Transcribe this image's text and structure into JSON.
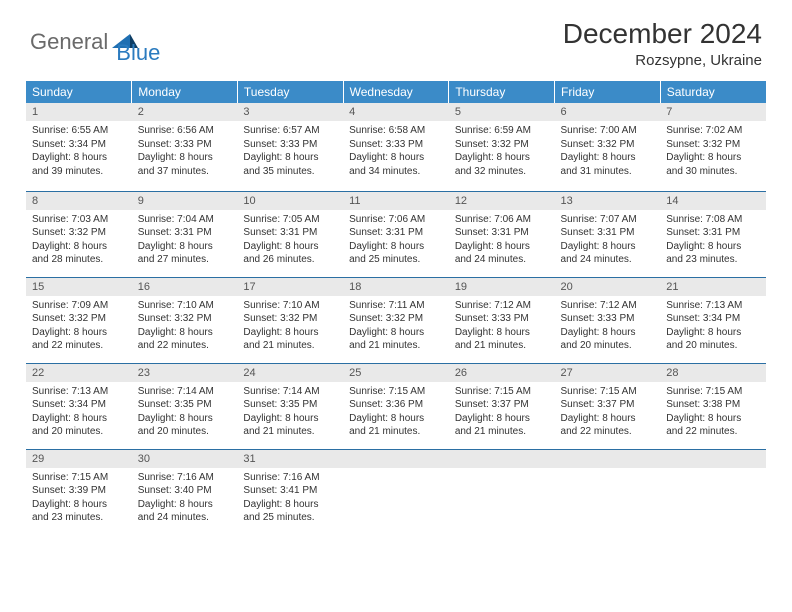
{
  "brand": {
    "general": "General",
    "blue": "Blue"
  },
  "title": "December 2024",
  "location": "Rozsypne, Ukraine",
  "colors": {
    "header_bg": "#3b8bc8",
    "header_text": "#ffffff",
    "daynum_bg": "#e9e9e9",
    "row_border": "#2b6fa3",
    "brand_gray": "#6a6a6a",
    "brand_blue": "#2b7bbf"
  },
  "weekdays": [
    "Sunday",
    "Monday",
    "Tuesday",
    "Wednesday",
    "Thursday",
    "Friday",
    "Saturday"
  ],
  "weeks": [
    [
      {
        "n": "1",
        "sr": "6:55 AM",
        "ss": "3:34 PM",
        "dl": "8 hours and 39 minutes."
      },
      {
        "n": "2",
        "sr": "6:56 AM",
        "ss": "3:33 PM",
        "dl": "8 hours and 37 minutes."
      },
      {
        "n": "3",
        "sr": "6:57 AM",
        "ss": "3:33 PM",
        "dl": "8 hours and 35 minutes."
      },
      {
        "n": "4",
        "sr": "6:58 AM",
        "ss": "3:33 PM",
        "dl": "8 hours and 34 minutes."
      },
      {
        "n": "5",
        "sr": "6:59 AM",
        "ss": "3:32 PM",
        "dl": "8 hours and 32 minutes."
      },
      {
        "n": "6",
        "sr": "7:00 AM",
        "ss": "3:32 PM",
        "dl": "8 hours and 31 minutes."
      },
      {
        "n": "7",
        "sr": "7:02 AM",
        "ss": "3:32 PM",
        "dl": "8 hours and 30 minutes."
      }
    ],
    [
      {
        "n": "8",
        "sr": "7:03 AM",
        "ss": "3:32 PM",
        "dl": "8 hours and 28 minutes."
      },
      {
        "n": "9",
        "sr": "7:04 AM",
        "ss": "3:31 PM",
        "dl": "8 hours and 27 minutes."
      },
      {
        "n": "10",
        "sr": "7:05 AM",
        "ss": "3:31 PM",
        "dl": "8 hours and 26 minutes."
      },
      {
        "n": "11",
        "sr": "7:06 AM",
        "ss": "3:31 PM",
        "dl": "8 hours and 25 minutes."
      },
      {
        "n": "12",
        "sr": "7:06 AM",
        "ss": "3:31 PM",
        "dl": "8 hours and 24 minutes."
      },
      {
        "n": "13",
        "sr": "7:07 AM",
        "ss": "3:31 PM",
        "dl": "8 hours and 24 minutes."
      },
      {
        "n": "14",
        "sr": "7:08 AM",
        "ss": "3:31 PM",
        "dl": "8 hours and 23 minutes."
      }
    ],
    [
      {
        "n": "15",
        "sr": "7:09 AM",
        "ss": "3:32 PM",
        "dl": "8 hours and 22 minutes."
      },
      {
        "n": "16",
        "sr": "7:10 AM",
        "ss": "3:32 PM",
        "dl": "8 hours and 22 minutes."
      },
      {
        "n": "17",
        "sr": "7:10 AM",
        "ss": "3:32 PM",
        "dl": "8 hours and 21 minutes."
      },
      {
        "n": "18",
        "sr": "7:11 AM",
        "ss": "3:32 PM",
        "dl": "8 hours and 21 minutes."
      },
      {
        "n": "19",
        "sr": "7:12 AM",
        "ss": "3:33 PM",
        "dl": "8 hours and 21 minutes."
      },
      {
        "n": "20",
        "sr": "7:12 AM",
        "ss": "3:33 PM",
        "dl": "8 hours and 20 minutes."
      },
      {
        "n": "21",
        "sr": "7:13 AM",
        "ss": "3:34 PM",
        "dl": "8 hours and 20 minutes."
      }
    ],
    [
      {
        "n": "22",
        "sr": "7:13 AM",
        "ss": "3:34 PM",
        "dl": "8 hours and 20 minutes."
      },
      {
        "n": "23",
        "sr": "7:14 AM",
        "ss": "3:35 PM",
        "dl": "8 hours and 20 minutes."
      },
      {
        "n": "24",
        "sr": "7:14 AM",
        "ss": "3:35 PM",
        "dl": "8 hours and 21 minutes."
      },
      {
        "n": "25",
        "sr": "7:15 AM",
        "ss": "3:36 PM",
        "dl": "8 hours and 21 minutes."
      },
      {
        "n": "26",
        "sr": "7:15 AM",
        "ss": "3:37 PM",
        "dl": "8 hours and 21 minutes."
      },
      {
        "n": "27",
        "sr": "7:15 AM",
        "ss": "3:37 PM",
        "dl": "8 hours and 22 minutes."
      },
      {
        "n": "28",
        "sr": "7:15 AM",
        "ss": "3:38 PM",
        "dl": "8 hours and 22 minutes."
      }
    ],
    [
      {
        "n": "29",
        "sr": "7:15 AM",
        "ss": "3:39 PM",
        "dl": "8 hours and 23 minutes."
      },
      {
        "n": "30",
        "sr": "7:16 AM",
        "ss": "3:40 PM",
        "dl": "8 hours and 24 minutes."
      },
      {
        "n": "31",
        "sr": "7:16 AM",
        "ss": "3:41 PM",
        "dl": "8 hours and 25 minutes."
      },
      {
        "n": "",
        "empty": true
      },
      {
        "n": "",
        "empty": true
      },
      {
        "n": "",
        "empty": true
      },
      {
        "n": "",
        "empty": true
      }
    ]
  ],
  "labels": {
    "sunrise": "Sunrise:",
    "sunset": "Sunset:",
    "daylight": "Daylight:"
  }
}
